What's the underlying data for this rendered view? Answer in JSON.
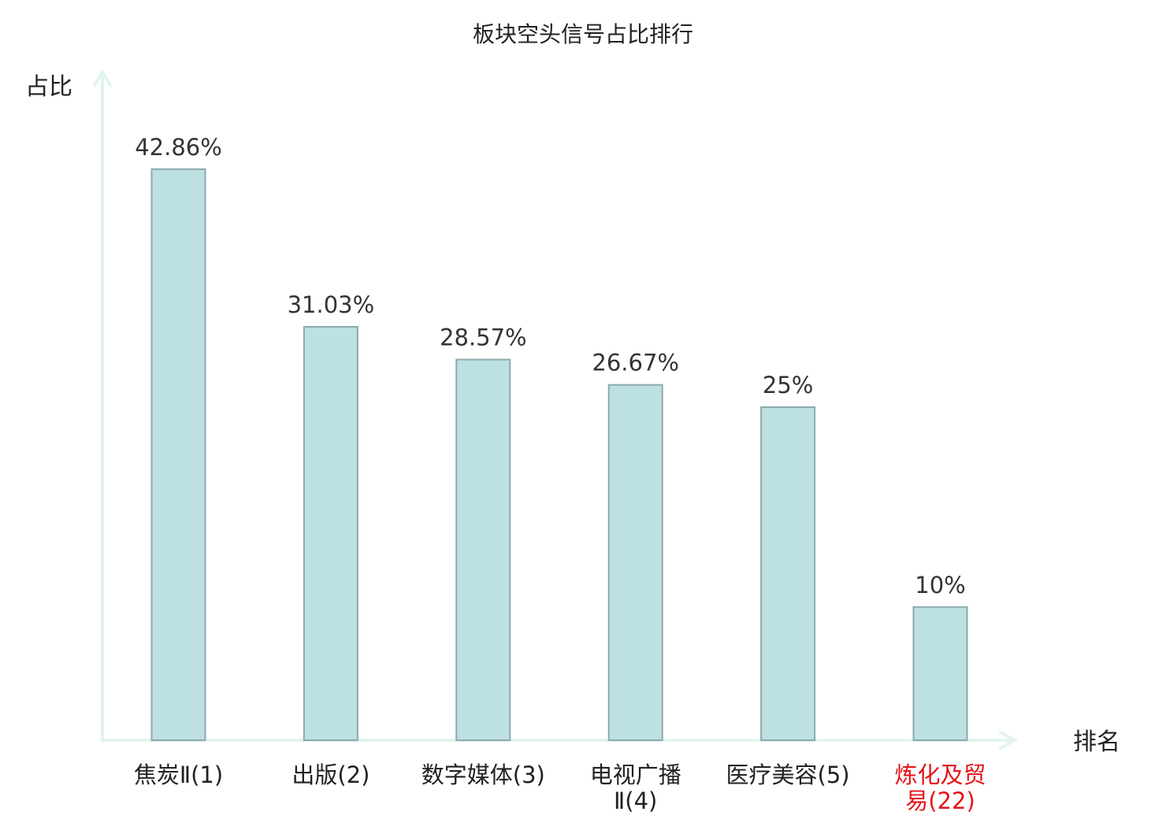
{
  "chart_data": {
    "type": "bar",
    "title": "板块空头信号占比排行",
    "ylabel": "占比",
    "xlabel": "排名",
    "ylim": [
      0,
      50
    ],
    "grid": false,
    "categories": [
      [
        "焦炭Ⅱ(1)"
      ],
      [
        "出版(2)"
      ],
      [
        "数字媒体(3)"
      ],
      [
        "电视广播",
        "Ⅱ(4)"
      ],
      [
        "医疗美容(5)"
      ],
      [
        "炼化及贸",
        "易(22)"
      ]
    ],
    "values": [
      42.86,
      31.03,
      28.57,
      26.67,
      25,
      10
    ],
    "value_labels": [
      "42.86%",
      "31.03%",
      "28.57%",
      "26.67%",
      "25%",
      "10%"
    ],
    "highlight_index": 5,
    "colors": {
      "bar_fill": "#bde0e3",
      "bar_stroke": "#8eaaac",
      "axis": "#e3f3f1",
      "highlight_text": "#e5141b",
      "text": "#222222"
    }
  }
}
